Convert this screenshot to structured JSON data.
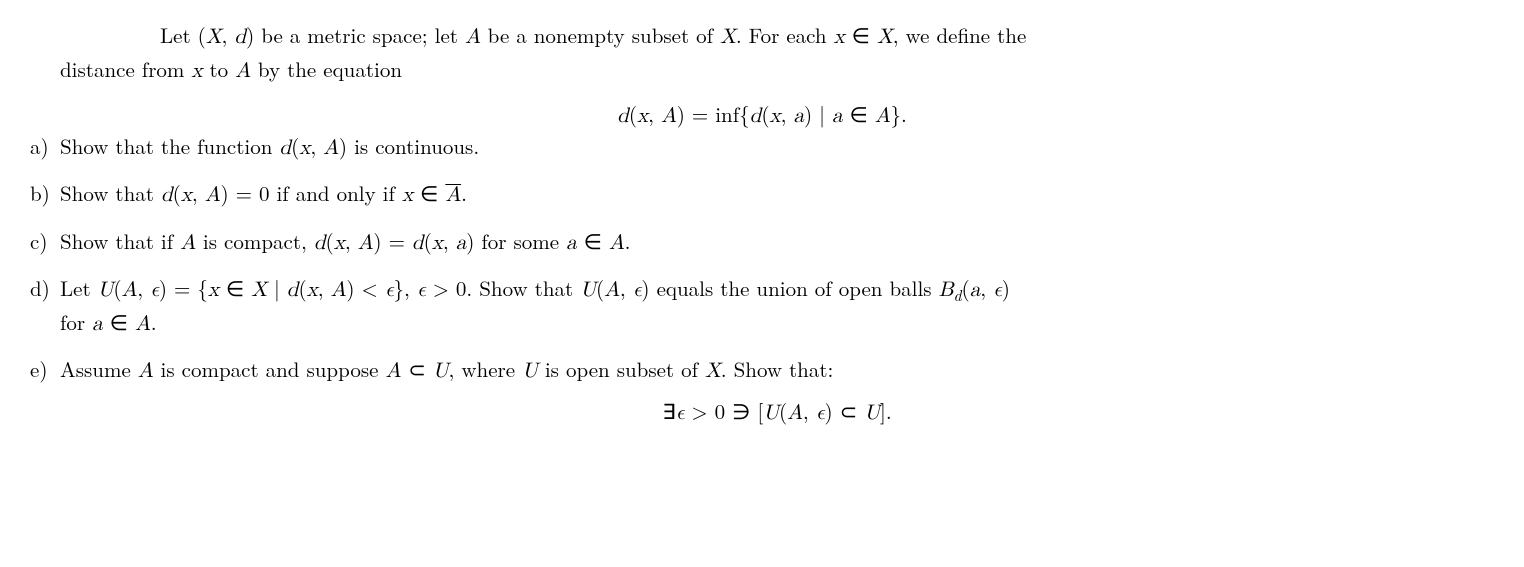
{
  "intro": {
    "line1_pre": "Let (",
    "line1_X": "X",
    "line1_comma_d": ", ",
    "line1_d": "d",
    "line1_mid1": ") be a metric space; let ",
    "line1_A": "A",
    "line1_mid2": " be a nonempty subset of ",
    "line1_X2": "X",
    "line1_mid3": ". For each ",
    "line1_x": "x",
    "line1_in": " ∈ ",
    "line1_X3": "X",
    "line1_end": ", we define the",
    "line2_pre": "distance from ",
    "line2_x": "x",
    "line2_to": " to ",
    "line2_A": "A",
    "line2_end": " by the equation"
  },
  "formula": {
    "d": "d",
    "open": "(",
    "x": "x",
    "comma": ", ",
    "A": "A",
    "close_eq": ") = inf{",
    "d2": "d",
    "open2": "(",
    "x2": "x",
    "comma2": ", ",
    "a": "a",
    "close2": ") | ",
    "a2": "a",
    "in": " ∈ ",
    "A2": "A",
    "end": "}."
  },
  "items": {
    "a": {
      "label": "a)",
      "t1": "Show that the function ",
      "d": "d",
      "t2": "(",
      "x": "x",
      "t3": ", ",
      "A": "A",
      "t4": ") is continuous."
    },
    "b": {
      "label": "b)",
      "t1": "Show that ",
      "d": "d",
      "t2": "(",
      "x": "x",
      "t3": ", ",
      "A": "A",
      "t4": ") = 0 if and only if ",
      "x2": "x",
      "t5": " ∈ ",
      "Abar": "A",
      "t6": "."
    },
    "c": {
      "label": "c)",
      "t1": "Show that if ",
      "A": "A",
      "t2": " is compact, ",
      "d": "d",
      "t3": "(",
      "x": "x",
      "t4": ", ",
      "A2": "A",
      "t5": ") = ",
      "d2": "d",
      "t6": "(",
      "x2": "x",
      "t7": ", ",
      "a": "a",
      "t8": ") for some ",
      "a2": "a",
      "t9": " ∈ ",
      "A3": "A",
      "t10": "."
    },
    "d": {
      "label": "d)",
      "t1": "Let ",
      "U": "U",
      "t2": "(",
      "A": "A",
      "t3": ", ",
      "eps": "ϵ",
      "t4": ") = {",
      "x": "x",
      "t5": " ∈ ",
      "X": "X",
      "t6": " | ",
      "d": "d",
      "t7": "(",
      "x2": "x",
      "t8": ", ",
      "A2": "A",
      "t9": ") < ",
      "eps2": "ϵ",
      "t10": "}, ",
      "eps3": "ϵ",
      "t11": " > 0. Show that ",
      "U2": "U",
      "t12": "(",
      "A3": "A",
      "t13": ", ",
      "eps4": "ϵ",
      "t14": ") equals the union of open balls ",
      "B": "B",
      "sub_d": "d",
      "t15": "(",
      "a": "a",
      "t16": ", ",
      "eps5": "ϵ",
      "t17": ")",
      "line2_t1": "for ",
      "line2_a": "a",
      "line2_t2": " ∈ ",
      "line2_A": "A",
      "line2_t3": "."
    },
    "e": {
      "label": "e)",
      "t1": "Assume ",
      "A": "A",
      "t2": " is compact and suppose ",
      "A2": "A",
      "t3": " ⊂ ",
      "U": "U",
      "t4": ", where ",
      "U2": "U",
      "t5": " is open subset of ",
      "X": "X",
      "t6": ". Show that:",
      "f_exists": "∃",
      "f_eps": "ϵ",
      "f_t1": " > 0 ∋ [",
      "f_U": "U",
      "f_t2": "(",
      "f_A": "A",
      "f_t3": ", ",
      "f_eps2": "ϵ",
      "f_t4": ") ⊂ ",
      "f_U2": "U",
      "f_t5": "]."
    }
  }
}
